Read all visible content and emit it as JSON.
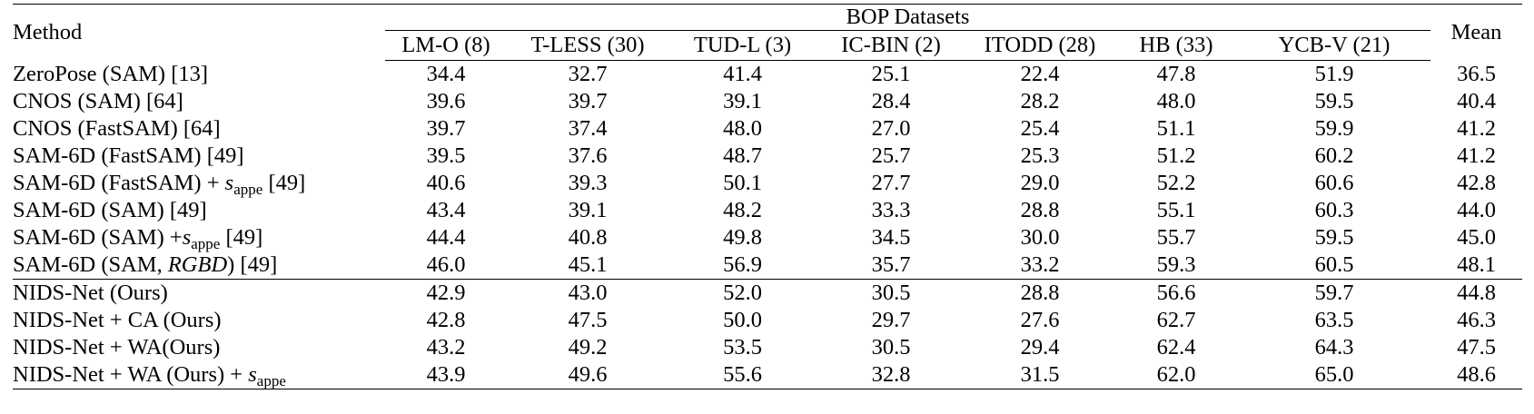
{
  "table": {
    "method_header": "Method",
    "group_header": "BOP Datasets",
    "mean_header": "Mean",
    "datasets": [
      "LM-O (8)",
      "T-LESS (30)",
      "TUD-L (3)",
      "IC-BIN (2)",
      "ITODD (28)",
      "HB (33)",
      "YCB-V (21)"
    ],
    "rows": [
      {
        "method": "ZeroPose (SAM) [13]",
        "values": [
          "34.4",
          "32.7",
          "41.4",
          "25.1",
          "22.4",
          "47.8",
          "51.9"
        ],
        "mean": "36.5"
      },
      {
        "method": "CNOS (SAM) [64]",
        "values": [
          "39.6",
          "39.7",
          "39.1",
          "28.4",
          "28.2",
          "48.0",
          "59.5"
        ],
        "mean": "40.4"
      },
      {
        "method": "CNOS (FastSAM) [64]",
        "values": [
          "39.7",
          "37.4",
          "48.0",
          "27.0",
          "25.4",
          "51.1",
          "59.9"
        ],
        "mean": "41.2"
      },
      {
        "method": "SAM-6D (FastSAM) [49]",
        "values": [
          "39.5",
          "37.6",
          "48.7",
          "25.7",
          "25.3",
          "51.2",
          "60.2"
        ],
        "mean": "41.2"
      },
      {
        "method_pre": "SAM-6D (FastSAM) + ",
        "method_s": "s",
        "method_sub": "appe",
        "method_post": " [49]",
        "values": [
          "40.6",
          "39.3",
          "50.1",
          "27.7",
          "29.0",
          "52.2",
          "60.6"
        ],
        "mean": "42.8"
      },
      {
        "method": "SAM-6D (SAM) [49]",
        "values": [
          "43.4",
          "39.1",
          "48.2",
          "33.3",
          "28.8",
          "55.1",
          "60.3"
        ],
        "mean": "44.0"
      },
      {
        "method_pre": "SAM-6D (SAM) +",
        "method_s": "s",
        "method_sub": "appe",
        "method_post": " [49]",
        "values": [
          "44.4",
          "40.8",
          "49.8",
          "34.5",
          "30.0",
          "55.7",
          "59.5"
        ],
        "mean": "45.0"
      },
      {
        "method_pre": "SAM-6D (SAM, ",
        "method_it": "RGBD",
        "method_post": ") [49]",
        "values": [
          "46.0",
          "45.1",
          "56.9",
          "35.7",
          "33.2",
          "59.3",
          "60.5"
        ],
        "mean": "48.1"
      },
      {
        "method": "NIDS-Net (Ours)",
        "values": [
          "42.9",
          "43.0",
          "52.0",
          "30.5",
          "28.8",
          "56.6",
          "59.7"
        ],
        "mean": "44.8"
      },
      {
        "method": "NIDS-Net + CA (Ours)",
        "values": [
          "42.8",
          "47.5",
          "50.0",
          "29.7",
          "27.6",
          "62.7",
          "63.5"
        ],
        "mean": "46.3"
      },
      {
        "method": "NIDS-Net + WA(Ours)",
        "values": [
          "43.2",
          "49.2",
          "53.5",
          "30.5",
          "29.4",
          "62.4",
          "64.3"
        ],
        "mean": "47.5"
      },
      {
        "method_pre": "NIDS-Net + WA (Ours) + ",
        "method_s": "s",
        "method_sub": "appe",
        "method_post": "",
        "values": [
          "43.9",
          "49.6",
          "55.6",
          "32.8",
          "31.5",
          "62.0",
          "65.0"
        ],
        "mean": "48.6"
      }
    ]
  }
}
